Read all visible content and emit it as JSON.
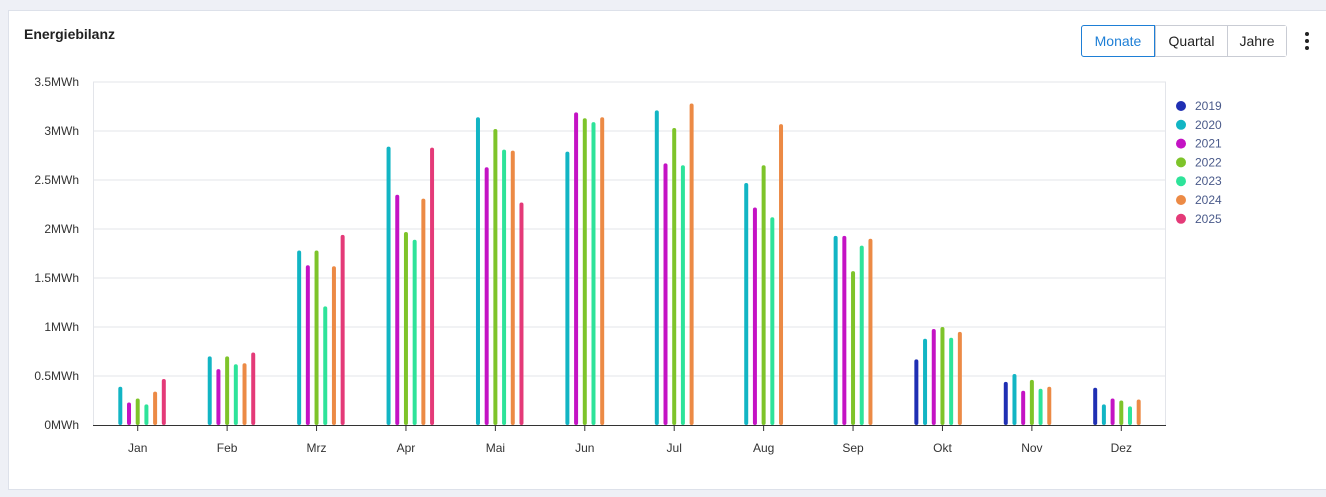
{
  "card": {
    "title": "Energiebilanz"
  },
  "toolbar": {
    "tabs": [
      {
        "label": "Monate",
        "active": true
      },
      {
        "label": "Quartal",
        "active": false
      },
      {
        "label": "Jahre",
        "active": false
      }
    ],
    "menu_icon": "more-vertical-icon"
  },
  "chart_data": {
    "type": "bar",
    "categories": [
      "Jan",
      "Feb",
      "Mrz",
      "Apr",
      "Mai",
      "Jun",
      "Jul",
      "Aug",
      "Sep",
      "Okt",
      "Nov",
      "Dez"
    ],
    "yticks": [
      "0MWh",
      "0.5MWh",
      "1MWh",
      "1.5MWh",
      "2MWh",
      "2.5MWh",
      "3MWh",
      "3.5MWh"
    ],
    "ylim": [
      0,
      3.5
    ],
    "unit": "MWh",
    "grid": true,
    "legend_position": "right",
    "series": [
      {
        "name": "2019",
        "color": "#1f2fb3",
        "values": [
          null,
          null,
          null,
          null,
          null,
          null,
          null,
          null,
          null,
          0.67,
          0.44,
          0.38
        ]
      },
      {
        "name": "2020",
        "color": "#12b5c4",
        "values": [
          0.39,
          0.7,
          1.78,
          2.84,
          3.14,
          2.79,
          3.21,
          2.47,
          1.93,
          0.88,
          0.52,
          0.21
        ]
      },
      {
        "name": "2021",
        "color": "#c413c4",
        "values": [
          0.23,
          0.57,
          1.63,
          2.35,
          2.63,
          3.19,
          2.67,
          2.22,
          1.93,
          0.98,
          0.35,
          0.27
        ]
      },
      {
        "name": "2022",
        "color": "#7ec42a",
        "values": [
          0.27,
          0.7,
          1.78,
          1.97,
          3.02,
          3.13,
          3.03,
          2.65,
          1.57,
          1.0,
          0.46,
          0.25
        ]
      },
      {
        "name": "2023",
        "color": "#2ee39a",
        "values": [
          0.21,
          0.62,
          1.21,
          1.89,
          2.81,
          3.09,
          2.65,
          2.12,
          1.83,
          0.89,
          0.37,
          0.19
        ]
      },
      {
        "name": "2024",
        "color": "#ec8a45",
        "values": [
          0.34,
          0.63,
          1.62,
          2.31,
          2.8,
          3.14,
          3.28,
          3.07,
          1.9,
          0.95,
          0.39,
          0.26
        ]
      },
      {
        "name": "2025",
        "color": "#e43a78",
        "values": [
          0.47,
          0.74,
          1.94,
          2.83,
          2.27,
          null,
          null,
          null,
          null,
          null,
          null,
          null
        ]
      }
    ]
  }
}
